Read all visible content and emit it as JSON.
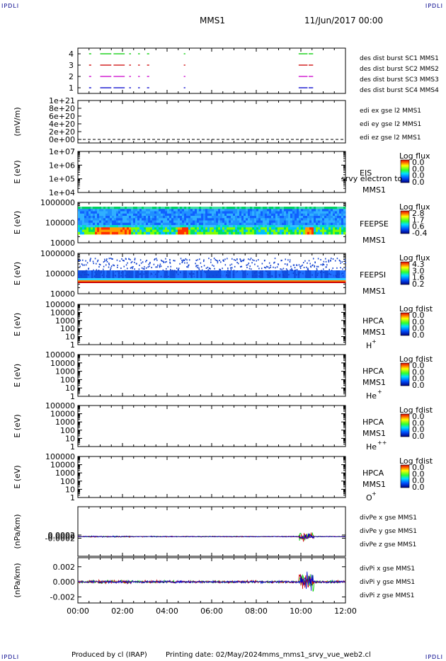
{
  "header": {
    "corner_tl": "IPDLI",
    "corner_tr": "IPDLI",
    "corner_bl": "IPDLI",
    "corner_br": "IPDLI",
    "title": "MMS1",
    "date": "11/Jun/2017 00:00"
  },
  "footer": {
    "produced_by": "Produced by cl (IRAP)",
    "printing_date": "Printing date: 02/May/2024",
    "filename": "mms_mms1_srvy_vue_web2.cl"
  },
  "chart_data": [
    {
      "id": "burst",
      "type": "line",
      "ylim": [
        0.5,
        4.5
      ],
      "yticks": [
        "1",
        "2",
        "3",
        "4"
      ],
      "legend": [
        {
          "text": "des dist burst SC1 MMS1",
          "color": "#0000cc"
        },
        {
          "text": "des dist burst SC2 MMS2",
          "color": "#cc00cc"
        },
        {
          "text": "des dist burst SC3 MMS3",
          "color": "#cc0000"
        },
        {
          "text": "des dist burst SC4 MMS4",
          "color": "#00cc00"
        }
      ],
      "segments_hours": [
        [
          0.5,
          0.6
        ],
        [
          1.0,
          1.5
        ],
        [
          1.6,
          2.1
        ],
        [
          2.3,
          2.38
        ],
        [
          2.7,
          2.78
        ],
        [
          3.1,
          3.2
        ],
        [
          4.75,
          4.82
        ],
        [
          9.9,
          10.3
        ],
        [
          10.35,
          10.55
        ]
      ],
      "sc_levels": [
        1,
        2,
        3,
        4
      ],
      "sc_colors": [
        "#0000cc",
        "#cc00cc",
        "#cc0000",
        "#00cc00"
      ]
    },
    {
      "id": "edi",
      "type": "line",
      "ylabel": "(mV/m)",
      "yticks": [
        "0e+00",
        "2e+20",
        "4e+20",
        "6e+20",
        "8e+20",
        "1e+21"
      ],
      "legend": [
        {
          "text": "edi ex gse l2 MMS1",
          "color": "#cc0000"
        },
        {
          "text": "edi ey gse l2 MMS1",
          "color": "#00aa00"
        },
        {
          "text": "edi ez gse l2 MMS1",
          "color": "#0000cc"
        }
      ]
    },
    {
      "id": "eis",
      "type": "heatmap",
      "ylabel": "E (eV)",
      "log": true,
      "yticks": [
        "1e+04",
        "1e+05",
        "1e+06",
        "1e+07"
      ],
      "instrument": "EIS",
      "spacecraft": "MMS1",
      "overlay": "srvy electron to",
      "colorbar_title": "Log flux",
      "colorbar_values": [
        "0.0",
        "0.0",
        "0.0",
        "0.0"
      ]
    },
    {
      "id": "feepse",
      "type": "heatmap",
      "ylabel": "E (eV)",
      "log": true,
      "yticks": [
        "10000",
        "100000",
        "1000000"
      ],
      "instrument": "FEEPSE",
      "spacecraft": "MMS1",
      "colorbar_title": "Log flux",
      "colorbar_values": [
        "2.8",
        "1.7",
        "0.6",
        "-0.4"
      ]
    },
    {
      "id": "feepsi",
      "type": "heatmap",
      "ylabel": "E (eV)",
      "log": true,
      "yticks": [
        "10000",
        "100000",
        "1000000"
      ],
      "instrument": "FEEPSI",
      "spacecraft": "MMS1",
      "colorbar_title": "Log flux",
      "colorbar_values": [
        "4.3",
        "3.0",
        "1.6",
        "0.2"
      ]
    },
    {
      "id": "hpca_h",
      "type": "heatmap",
      "ylabel": "E (eV)",
      "log": true,
      "yticks": [
        "1",
        "10",
        "100",
        "1000",
        "10000",
        "100000"
      ],
      "instrument": "HPCA",
      "spacecraft": "MMS1",
      "species": "H",
      "species_charge": "+",
      "colorbar_title": "Log fdist",
      "colorbar_values": [
        "0.0",
        "0.0",
        "0.0",
        "0.0"
      ]
    },
    {
      "id": "hpca_he",
      "type": "heatmap",
      "ylabel": "E (eV)",
      "log": true,
      "yticks": [
        "1",
        "10",
        "100",
        "1000",
        "10000",
        "100000"
      ],
      "instrument": "HPCA",
      "spacecraft": "MMS1",
      "species": "He",
      "species_charge": "+",
      "colorbar_title": "Log fdist",
      "colorbar_values": [
        "0.0",
        "0.0",
        "0.0",
        "0.0"
      ]
    },
    {
      "id": "hpca_hepp",
      "type": "heatmap",
      "ylabel": "E (eV)",
      "log": true,
      "yticks": [
        "1",
        "10",
        "100",
        "1000",
        "10000",
        "100000"
      ],
      "instrument": "HPCA",
      "spacecraft": "MMS1",
      "species": "He",
      "species_charge": "++",
      "colorbar_title": "Log fdist",
      "colorbar_values": [
        "0.0",
        "0.0",
        "0.0",
        "0.0"
      ]
    },
    {
      "id": "hpca_o",
      "type": "heatmap",
      "ylabel": "E (eV)",
      "log": true,
      "yticks": [
        "1",
        "10",
        "100",
        "1000",
        "10000",
        "100000"
      ],
      "instrument": "HPCA",
      "spacecraft": "MMS1",
      "species": "O",
      "species_charge": "+",
      "colorbar_title": "Log fdist",
      "colorbar_values": [
        "0.0",
        "0.0",
        "0.0",
        "0.0"
      ]
    },
    {
      "id": "divpe",
      "type": "line",
      "ylabel": "(nPa/km)",
      "ylim": [
        -0.0025,
        0.0038
      ],
      "yticks": [
        "-0.0002",
        "0.0000",
        "0.0002"
      ],
      "ytick_values": [
        -0.0002,
        0.0,
        0.0002
      ],
      "legend": [
        {
          "text": "divPe x gse MMS1",
          "color": "#cc0000"
        },
        {
          "text": "divPe y gse MMS1",
          "color": "#00cc00"
        },
        {
          "text": "divPe z gse MMS1",
          "color": "#0000cc"
        }
      ]
    },
    {
      "id": "divpi",
      "type": "line",
      "ylabel": "(nPa/km)",
      "ylim": [
        -0.0028,
        0.0032
      ],
      "yticks": [
        "-0.002",
        "0.000",
        "0.002"
      ],
      "ytick_values": [
        -0.002,
        0.0,
        0.002
      ],
      "legend": [
        {
          "text": "divPi x gse MMS1",
          "color": "#cc0000"
        },
        {
          "text": "divPi y gse MMS1",
          "color": "#00cc00"
        },
        {
          "text": "divPi z gse MMS1",
          "color": "#0000cc"
        }
      ]
    }
  ],
  "time_axis": {
    "range_hours": [
      0,
      12
    ],
    "ticks": [
      "00:00",
      "02:00",
      "04:00",
      "06:00",
      "08:00",
      "10:00",
      "12:00"
    ]
  }
}
